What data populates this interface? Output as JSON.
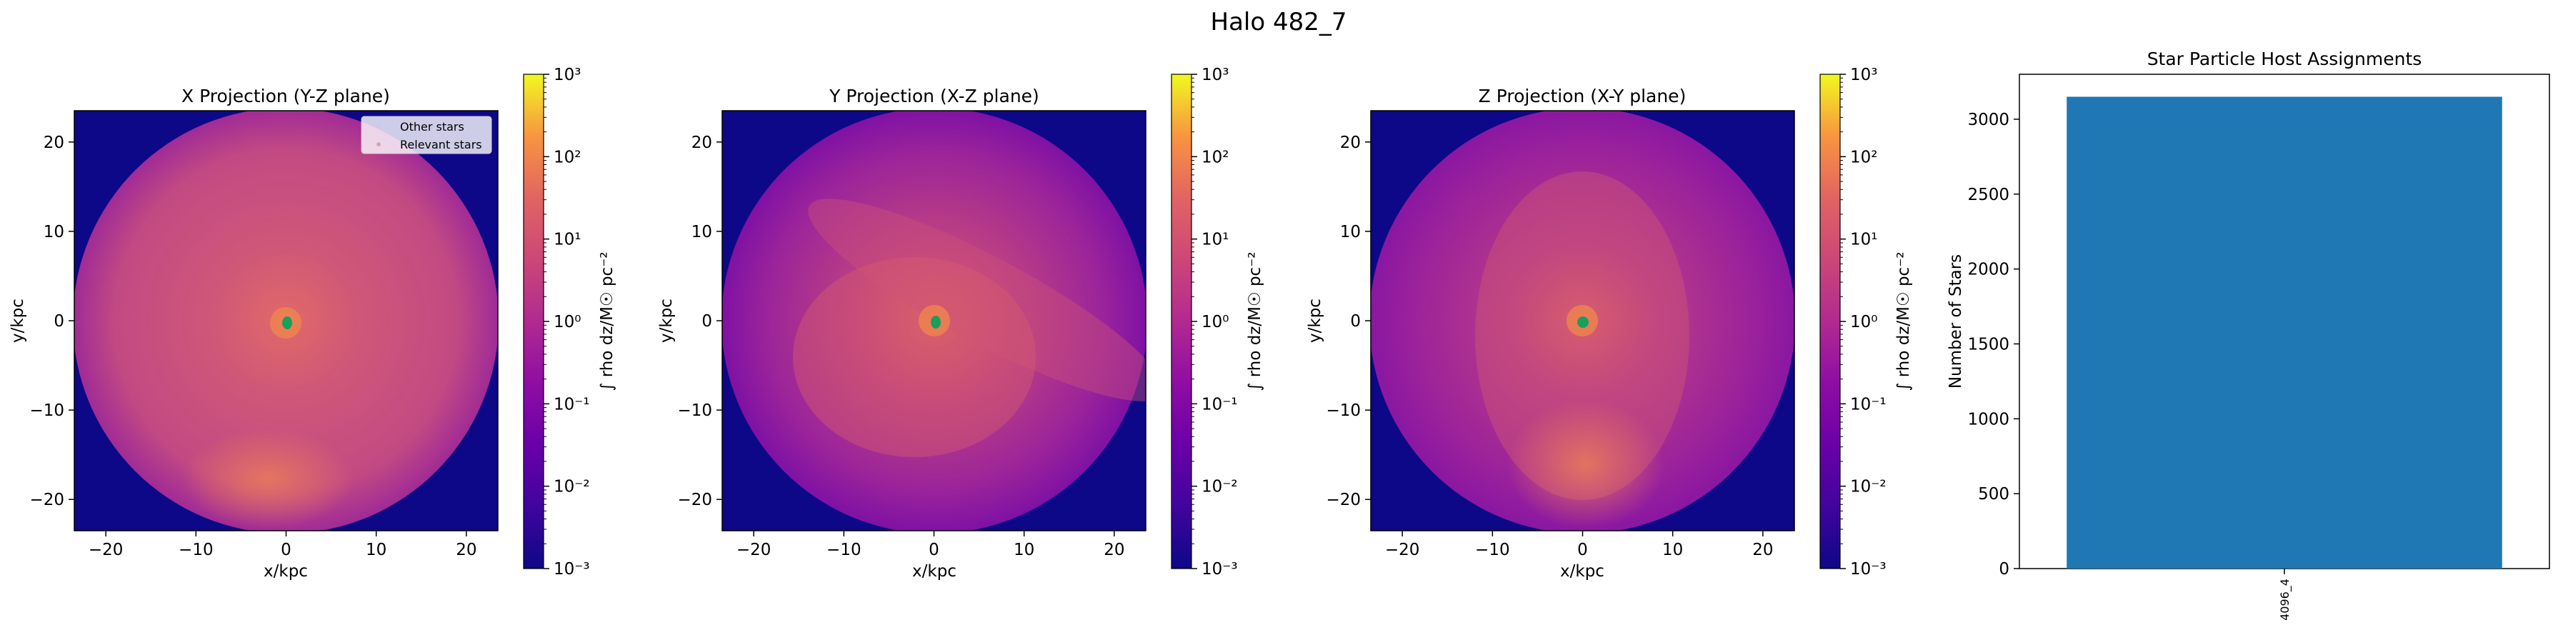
{
  "figure": {
    "title": "Halo 482_7"
  },
  "colors": {
    "bar": "#1f77b4",
    "cmap_low": "#0d0887",
    "cmap_high": "#f0f921",
    "stars_relevant": "#d9a2b8",
    "stars_other": "#d0c6ea"
  },
  "panels": [
    {
      "title": "X Projection (Y-Z plane)",
      "xlabel": "x/kpc",
      "ylabel": "y/kpc",
      "cbar_label": "∫ rho dz/M☉ pc⁻²",
      "legend": [
        "Other stars",
        "Relevant stars"
      ]
    },
    {
      "title": "Y Projection (X-Z plane)",
      "xlabel": "x/kpc",
      "ylabel": "y/kpc",
      "cbar_label": "∫ rho dz/M☉ pc⁻²"
    },
    {
      "title": "Z Projection (X-Y plane)",
      "xlabel": "x/kpc",
      "ylabel": "y/kpc",
      "cbar_label": "∫ rho dz/M☉ pc⁻²"
    }
  ],
  "bar_panel": {
    "title": "Star Particle Host Assignments",
    "ylabel": "Number of Stars"
  },
  "chart_data": [
    {
      "type": "heatmap",
      "title": "X Projection (Y-Z plane)",
      "xlabel": "x/kpc",
      "ylabel": "y/kpc",
      "xlim": [
        -23.5,
        23.5
      ],
      "ylim": [
        -23.5,
        23.5
      ],
      "xticks": [
        -20,
        -10,
        0,
        10,
        20
      ],
      "yticks": [
        -20,
        -10,
        0,
        10,
        20
      ],
      "colorbar": {
        "scale": "log",
        "range": [
          0.001,
          1000
        ],
        "ticks": [
          "10⁻³",
          "10⁻²",
          "10⁻¹",
          "10⁰",
          "10¹",
          "10²",
          "10³"
        ]
      },
      "legend_position": "upper-right"
    },
    {
      "type": "heatmap",
      "title": "Y Projection (X-Z plane)",
      "xlabel": "x/kpc",
      "ylabel": "y/kpc",
      "xlim": [
        -23.5,
        23.5
      ],
      "ylim": [
        -23.5,
        23.5
      ],
      "xticks": [
        -20,
        -10,
        0,
        10,
        20
      ],
      "yticks": [
        -20,
        -10,
        0,
        10,
        20
      ],
      "colorbar": {
        "scale": "log",
        "range": [
          0.001,
          1000
        ],
        "ticks": [
          "10⁻³",
          "10⁻²",
          "10⁻¹",
          "10⁰",
          "10¹",
          "10²",
          "10³"
        ]
      }
    },
    {
      "type": "heatmap",
      "title": "Z Projection (X-Y plane)",
      "xlabel": "x/kpc",
      "ylabel": "y/kpc",
      "xlim": [
        -23.5,
        23.5
      ],
      "ylim": [
        -23.5,
        23.5
      ],
      "xticks": [
        -20,
        -10,
        0,
        10,
        20
      ],
      "yticks": [
        -20,
        -10,
        0,
        10,
        20
      ],
      "colorbar": {
        "scale": "log",
        "range": [
          0.001,
          1000
        ],
        "ticks": [
          "10⁻³",
          "10⁻²",
          "10⁻¹",
          "10⁰",
          "10¹",
          "10²",
          "10³"
        ]
      }
    },
    {
      "type": "bar",
      "title": "Star Particle Host Assignments",
      "ylabel": "Number of Stars",
      "categories": [
        "4096_4"
      ],
      "values": [
        3150
      ],
      "ylim": [
        0,
        3300
      ],
      "yticks": [
        0,
        500,
        1000,
        1500,
        2000,
        2500,
        3000
      ]
    }
  ]
}
